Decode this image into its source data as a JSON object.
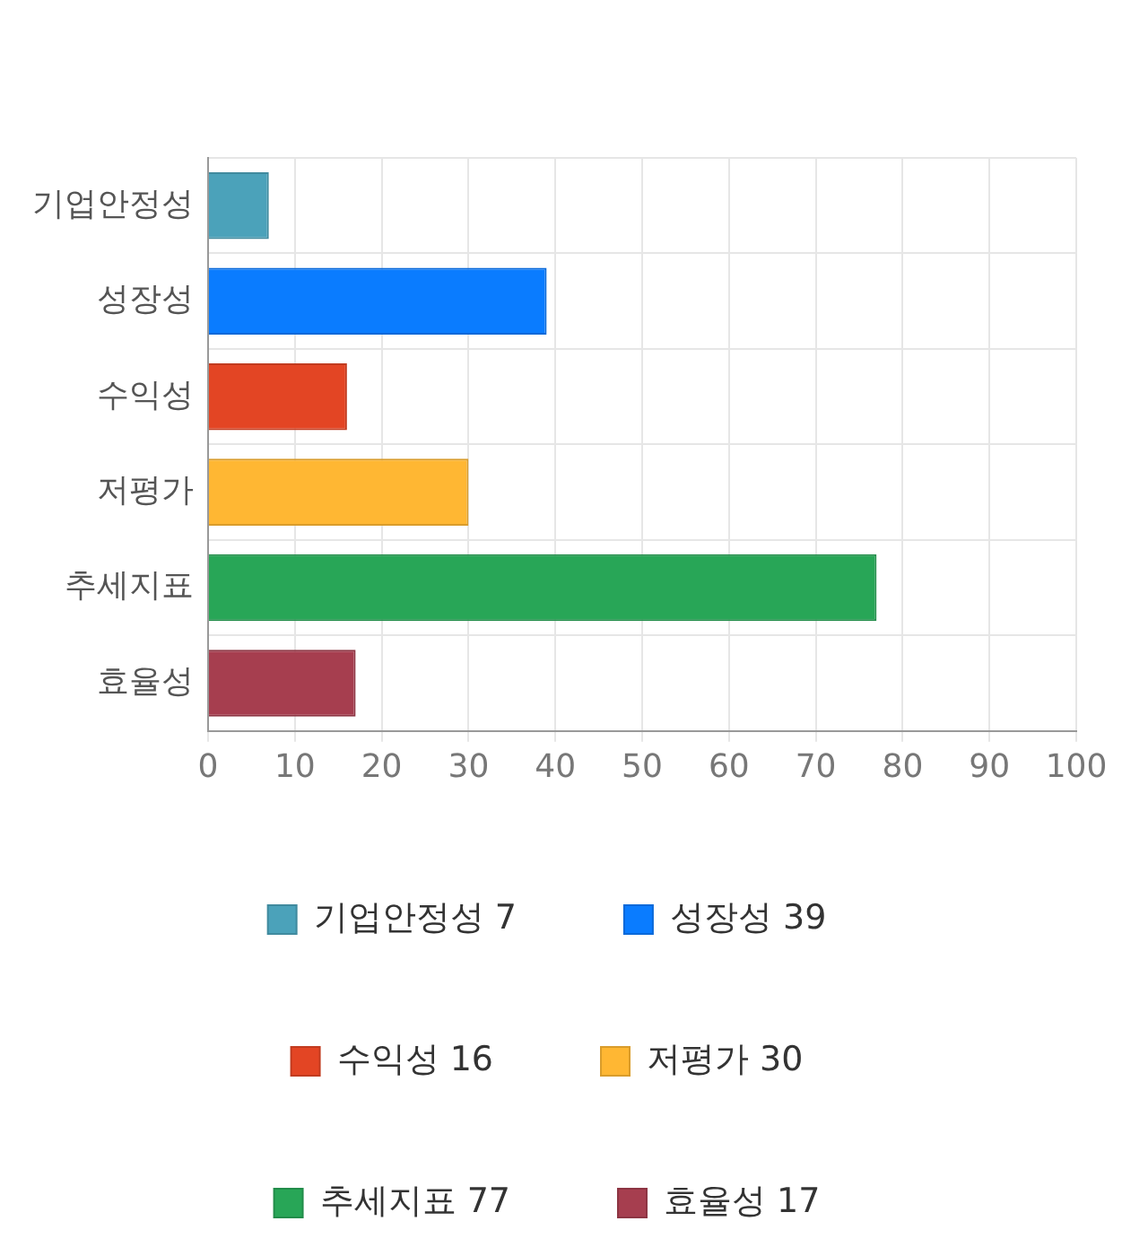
{
  "chart_data": {
    "type": "bar",
    "orientation": "horizontal",
    "categories": [
      "기업안정성",
      "성장성",
      "수익성",
      "저평가",
      "추세지표",
      "효율성"
    ],
    "series": [
      {
        "name": "기업안정성 7",
        "color": "#4ba2ba",
        "values": [
          7,
          null,
          null,
          null,
          null,
          null
        ]
      },
      {
        "name": "성장성 39",
        "color": "#0a7cff",
        "values": [
          null,
          39,
          null,
          null,
          null,
          null
        ]
      },
      {
        "name": "수익성 16",
        "color": "#e34524",
        "values": [
          null,
          null,
          16,
          null,
          null,
          null
        ]
      },
      {
        "name": "저평가 30",
        "color": "#ffb733",
        "values": [
          null,
          null,
          null,
          30,
          null,
          null
        ]
      },
      {
        "name": "추세지표 77",
        "color": "#28a657",
        "values": [
          null,
          null,
          null,
          null,
          77,
          null
        ]
      },
      {
        "name": "효율성 17",
        "color": "#a63e4f",
        "values": [
          null,
          null,
          null,
          null,
          null,
          17
        ]
      }
    ],
    "xlim": [
      0,
      100
    ],
    "xticks": [
      0,
      10,
      20,
      30,
      40,
      50,
      60,
      70,
      80,
      90,
      100
    ],
    "grid": true,
    "legend": "bottom"
  }
}
